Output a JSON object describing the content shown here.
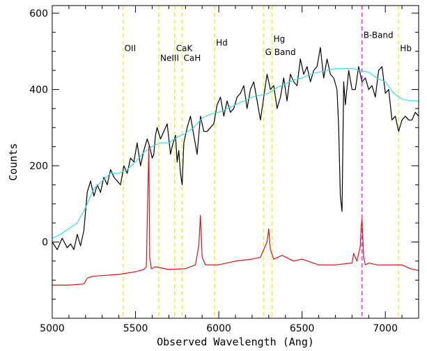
{
  "chart_data": {
    "type": "line",
    "title": "",
    "xlabel": "Observed Wavelength (Ang)",
    "ylabel": "Counts",
    "xlim": [
      5000,
      7200
    ],
    "ylim": [
      -200,
      620
    ],
    "xticks": [
      5000,
      5500,
      6000,
      6500,
      7000
    ],
    "yticks": [
      0,
      200,
      400,
      600
    ],
    "grid": false,
    "colors": {
      "observed": "#000000",
      "template": "#33dddd",
      "sky": "#dd1111",
      "line_marker": "#eeee33",
      "band_marker": "#ee22ee"
    },
    "series": [
      {
        "color": "#000000",
        "x": [
          5000,
          5030,
          5060,
          5090,
          5110,
          5130,
          5150,
          5170,
          5190,
          5200,
          5210,
          5230,
          5250,
          5270,
          5290,
          5310,
          5330,
          5350,
          5370,
          5390,
          5410,
          5430,
          5450,
          5470,
          5490,
          5510,
          5530,
          5550,
          5570,
          5585,
          5600,
          5610,
          5620,
          5630,
          5650,
          5670,
          5690,
          5710,
          5720,
          5740,
          5750,
          5760,
          5770,
          5780,
          5790,
          5810,
          5830,
          5850,
          5870,
          5890,
          5910,
          5930,
          5950,
          5970,
          5990,
          6010,
          6030,
          6050,
          6070,
          6090,
          6110,
          6130,
          6150,
          6170,
          6190,
          6210,
          6230,
          6250,
          6270,
          6290,
          6310,
          6330,
          6350,
          6370,
          6390,
          6410,
          6430,
          6450,
          6470,
          6490,
          6510,
          6530,
          6550,
          6570,
          6590,
          6610,
          6630,
          6650,
          6670,
          6690,
          6710,
          6720,
          6730,
          6740,
          6750,
          6760,
          6780,
          6800,
          6820,
          6840,
          6860,
          6880,
          6900,
          6920,
          6940,
          6960,
          6980,
          7000,
          7020,
          7040,
          7060,
          7080,
          7100,
          7120,
          7140,
          7160,
          7180,
          7200
        ],
        "values": [
          0,
          -20,
          10,
          -15,
          -5,
          -20,
          20,
          -10,
          30,
          80,
          130,
          160,
          120,
          150,
          130,
          170,
          150,
          190,
          170,
          160,
          150,
          200,
          180,
          220,
          210,
          260,
          200,
          240,
          270,
          250,
          220,
          230,
          280,
          300,
          270,
          290,
          310,
          230,
          250,
          280,
          210,
          240,
          180,
          150,
          260,
          300,
          330,
          280,
          230,
          330,
          290,
          290,
          300,
          310,
          360,
          380,
          330,
          370,
          340,
          350,
          380,
          390,
          410,
          350,
          400,
          420,
          370,
          320,
          380,
          440,
          400,
          410,
          350,
          380,
          430,
          370,
          440,
          420,
          410,
          480,
          440,
          460,
          420,
          450,
          460,
          510,
          430,
          480,
          440,
          430,
          400,
          300,
          120,
          80,
          420,
          360,
          450,
          400,
          400,
          460,
          420,
          430,
          400,
          410,
          380,
          450,
          460,
          390,
          400,
          320,
          330,
          290,
          320,
          330,
          320,
          320,
          340,
          330
        ]
      },
      {
        "color": "#33dddd",
        "x": [
          5000,
          5050,
          5100,
          5150,
          5200,
          5250,
          5300,
          5350,
          5400,
          5450,
          5500,
          5550,
          5600,
          5650,
          5700,
          5750,
          5800,
          5850,
          5900,
          5950,
          6000,
          6050,
          6100,
          6150,
          6200,
          6250,
          6300,
          6350,
          6400,
          6450,
          6500,
          6550,
          6600,
          6650,
          6700,
          6750,
          6800,
          6850,
          6900,
          6950,
          7000,
          7050,
          7100,
          7150,
          7200
        ],
        "values": [
          10,
          20,
          35,
          50,
          90,
          140,
          160,
          180,
          180,
          190,
          210,
          235,
          250,
          260,
          260,
          275,
          285,
          300,
          325,
          335,
          340,
          350,
          360,
          370,
          380,
          385,
          390,
          405,
          415,
          425,
          430,
          440,
          445,
          450,
          455,
          455,
          455,
          450,
          445,
          430,
          420,
          390,
          375,
          370,
          370
        ]
      },
      {
        "color": "#dd1111",
        "x": [
          5000,
          5100,
          5190,
          5210,
          5240,
          5300,
          5400,
          5500,
          5550,
          5565,
          5575,
          5580,
          5585,
          5595,
          5620,
          5700,
          5800,
          5860,
          5880,
          5890,
          5900,
          5920,
          6000,
          6100,
          6200,
          6250,
          6270,
          6290,
          6300,
          6310,
          6330,
          6380,
          6450,
          6500,
          6600,
          6700,
          6800,
          6810,
          6830,
          6850,
          6855,
          6860,
          6870,
          6880,
          6900,
          6950,
          7000,
          7100,
          7150,
          7200
        ],
        "values": [
          -113,
          -113,
          -110,
          -95,
          -90,
          -88,
          -85,
          -78,
          -72,
          -65,
          150,
          250,
          -40,
          -70,
          -65,
          -72,
          -70,
          -60,
          -10,
          70,
          -40,
          -60,
          -60,
          -50,
          -45,
          -40,
          -20,
          0,
          35,
          -20,
          -45,
          -35,
          -50,
          -45,
          -60,
          -60,
          -55,
          -30,
          -50,
          -10,
          40,
          60,
          -40,
          -60,
          -55,
          -60,
          -60,
          -60,
          -70,
          -75
        ]
      }
    ],
    "vertical_markers": [
      {
        "x": 5425,
        "label": "OII",
        "label_y": 500,
        "color": "#eeee33"
      },
      {
        "x": 5640,
        "label": "NeIII",
        "label_y": 475,
        "color": "#eeee33"
      },
      {
        "x": 5735,
        "label": "CaK",
        "label_y": 500,
        "color": "#eeee33"
      },
      {
        "x": 5780,
        "label": "CaH",
        "label_y": 475,
        "color": "#eeee33"
      },
      {
        "x": 5975,
        "label": "Hd",
        "label_y": 515,
        "color": "#eeee33"
      },
      {
        "x": 6270,
        "label": "G Band",
        "label_y": 490,
        "color": "#eeee33"
      },
      {
        "x": 6320,
        "label": "Hg",
        "label_y": 525,
        "color": "#eeee33"
      },
      {
        "x": 6860,
        "label": "B-Band",
        "label_y": 535,
        "color": "#ee22ee"
      },
      {
        "x": 7080,
        "label": "Hb",
        "label_y": 500,
        "color": "#eeee33"
      }
    ]
  }
}
